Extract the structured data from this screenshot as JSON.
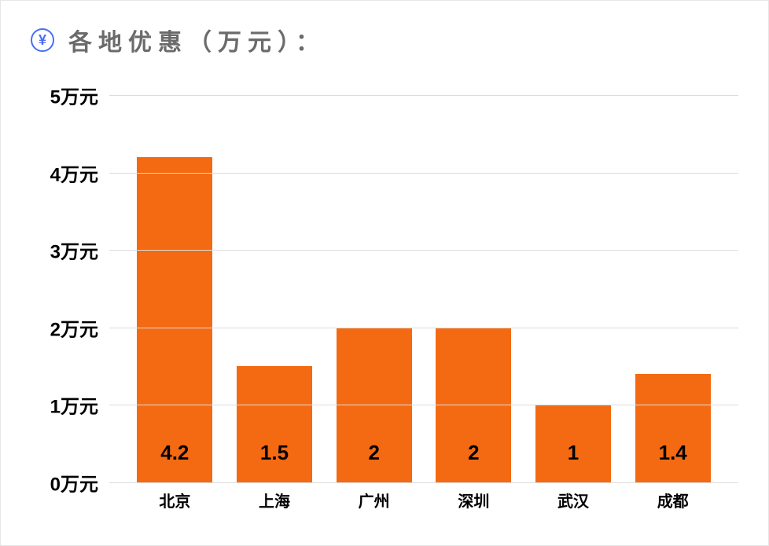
{
  "header": {
    "icon_glyph": "¥",
    "icon_color": "#4a6ef5",
    "title": "各地优惠（万元）：",
    "title_color": "#6b6b6b",
    "title_fontsize": 30
  },
  "chart": {
    "type": "bar",
    "categories": [
      "北京",
      "上海",
      "广州",
      "深圳",
      "武汉",
      "成都"
    ],
    "values": [
      4.2,
      1.5,
      2,
      2,
      1,
      1.4
    ],
    "value_labels": [
      "4.2",
      "1.5",
      "2",
      "2",
      "1",
      "1.4"
    ],
    "bar_color": "#f36a12",
    "ymin": 0,
    "ymax": 5,
    "ytick_step": 1,
    "yticks": [
      0,
      1,
      2,
      3,
      4,
      5
    ],
    "ytick_labels": [
      "0万元",
      "1万元",
      "2万元",
      "3万元",
      "4万元",
      "5万元"
    ],
    "y_unit": "万元",
    "grid_color": "#dcdcdc",
    "background_color": "#ffffff",
    "axis_label_color": "#000000",
    "axis_label_fontsize": 24,
    "value_label_color": "#000000",
    "value_label_fontsize": 26,
    "xaxis_label_fontsize": 20,
    "bar_width_ratio": 0.76
  }
}
